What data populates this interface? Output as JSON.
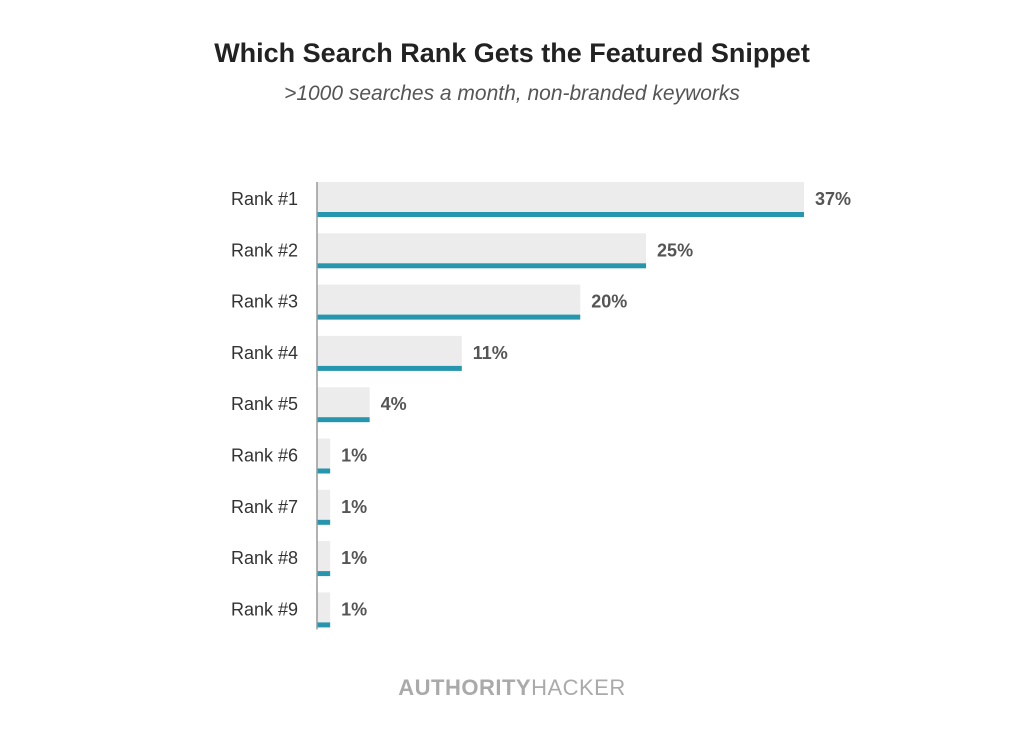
{
  "chart_data": {
    "type": "bar",
    "orientation": "horizontal",
    "title": "Which Search Rank Gets the Featured Snippet",
    "subtitle": ">1000 searches a month, non-branded keyworks",
    "categories": [
      "Rank #1",
      "Rank #2",
      "Rank #3",
      "Rank #4",
      "Rank #5",
      "Rank #6",
      "Rank #7",
      "Rank #8",
      "Rank #9"
    ],
    "values": [
      37,
      25,
      20,
      11,
      4,
      1,
      1,
      1,
      1
    ],
    "value_labels": [
      "37%",
      "25%",
      "20%",
      "11%",
      "4%",
      "1%",
      "1%",
      "1%",
      "1%"
    ],
    "xlabel": "",
    "ylabel": "",
    "xlim": [
      0,
      37
    ],
    "grid": false,
    "colors": {
      "bar": "#2596ae",
      "bar_bg": "#ececec"
    }
  },
  "branding": {
    "bold": "AUTHORITY",
    "light": "HACKER"
  }
}
